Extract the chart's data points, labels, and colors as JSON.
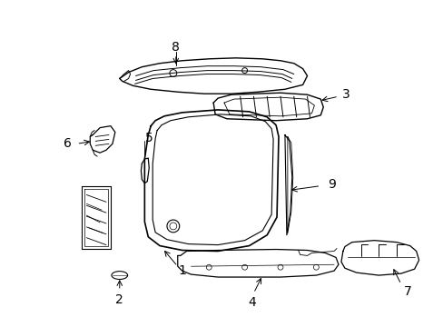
{
  "background_color": "#ffffff",
  "line_color": "#000000",
  "fig_width": 4.89,
  "fig_height": 3.6,
  "dpi": 100,
  "label_fontsize": 10
}
